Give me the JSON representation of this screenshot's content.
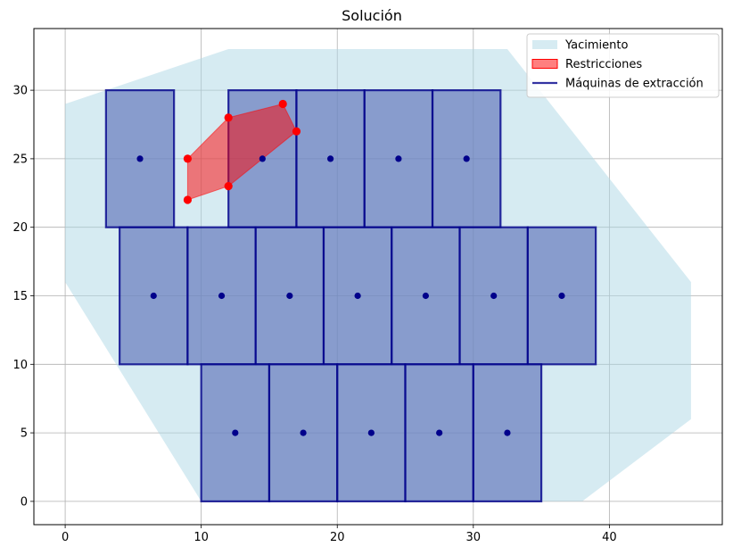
{
  "chart_data": {
    "type": "polygon-layout",
    "title": "Solución",
    "xlabel": "",
    "ylabel": "",
    "xlim": [
      -2.3,
      48.3
    ],
    "ylim": [
      -1.7,
      34.5
    ],
    "x_ticks": [
      0,
      10,
      20,
      30,
      40
    ],
    "y_ticks": [
      0,
      5,
      10,
      15,
      20,
      25,
      30
    ],
    "grid": true,
    "legend": {
      "position": "top-right",
      "entries": [
        {
          "label": "Yacimiento",
          "kind": "patch",
          "color": "#add8e6"
        },
        {
          "label": "Restricciones",
          "kind": "patch",
          "color": "#ff0000"
        },
        {
          "label": "Máquinas de extracción",
          "kind": "line",
          "color": "#00008b"
        }
      ]
    },
    "deposit": {
      "name": "Yacimiento",
      "color": "#add8e6",
      "polygon": [
        [
          0,
          16
        ],
        [
          0,
          29
        ],
        [
          12,
          33
        ],
        [
          32.5,
          33
        ],
        [
          46,
          16
        ],
        [
          46,
          6
        ],
        [
          38,
          0
        ],
        [
          10,
          0
        ]
      ]
    },
    "restriction": {
      "name": "Restricciones",
      "fill_color": "#ff0000",
      "point_color": "#ff0000",
      "polygon": [
        [
          9,
          22
        ],
        [
          12,
          23
        ],
        [
          17,
          27
        ],
        [
          16,
          29
        ],
        [
          12,
          28
        ],
        [
          9,
          25
        ]
      ]
    },
    "machines": {
      "name": "Máquinas de extracción",
      "fill_color": "#5e72b8",
      "edge_color": "#00008b",
      "center_color": "#00008b",
      "width": 5,
      "height": 10,
      "rectangles": [
        {
          "x": 3,
          "y": 20,
          "center": [
            5.5,
            25
          ]
        },
        {
          "x": 12,
          "y": 20,
          "center": [
            14.5,
            25
          ]
        },
        {
          "x": 17,
          "y": 20,
          "center": [
            19.5,
            25
          ]
        },
        {
          "x": 22,
          "y": 20,
          "center": [
            24.5,
            25
          ]
        },
        {
          "x": 27,
          "y": 20,
          "center": [
            29.5,
            25
          ]
        },
        {
          "x": 4,
          "y": 10,
          "center": [
            6.5,
            15
          ]
        },
        {
          "x": 9,
          "y": 10,
          "center": [
            11.5,
            15
          ]
        },
        {
          "x": 14,
          "y": 10,
          "center": [
            16.5,
            15
          ]
        },
        {
          "x": 19,
          "y": 10,
          "center": [
            21.5,
            15
          ]
        },
        {
          "x": 24,
          "y": 10,
          "center": [
            26.5,
            15
          ]
        },
        {
          "x": 29,
          "y": 10,
          "center": [
            31.5,
            15
          ]
        },
        {
          "x": 34,
          "y": 10,
          "center": [
            36.5,
            15
          ]
        },
        {
          "x": 10,
          "y": 0,
          "center": [
            12.5,
            5
          ]
        },
        {
          "x": 15,
          "y": 0,
          "center": [
            17.5,
            5
          ]
        },
        {
          "x": 20,
          "y": 0,
          "center": [
            22.5,
            5
          ]
        },
        {
          "x": 25,
          "y": 0,
          "center": [
            27.5,
            5
          ]
        },
        {
          "x": 30,
          "y": 0,
          "center": [
            32.5,
            5
          ]
        }
      ]
    }
  }
}
